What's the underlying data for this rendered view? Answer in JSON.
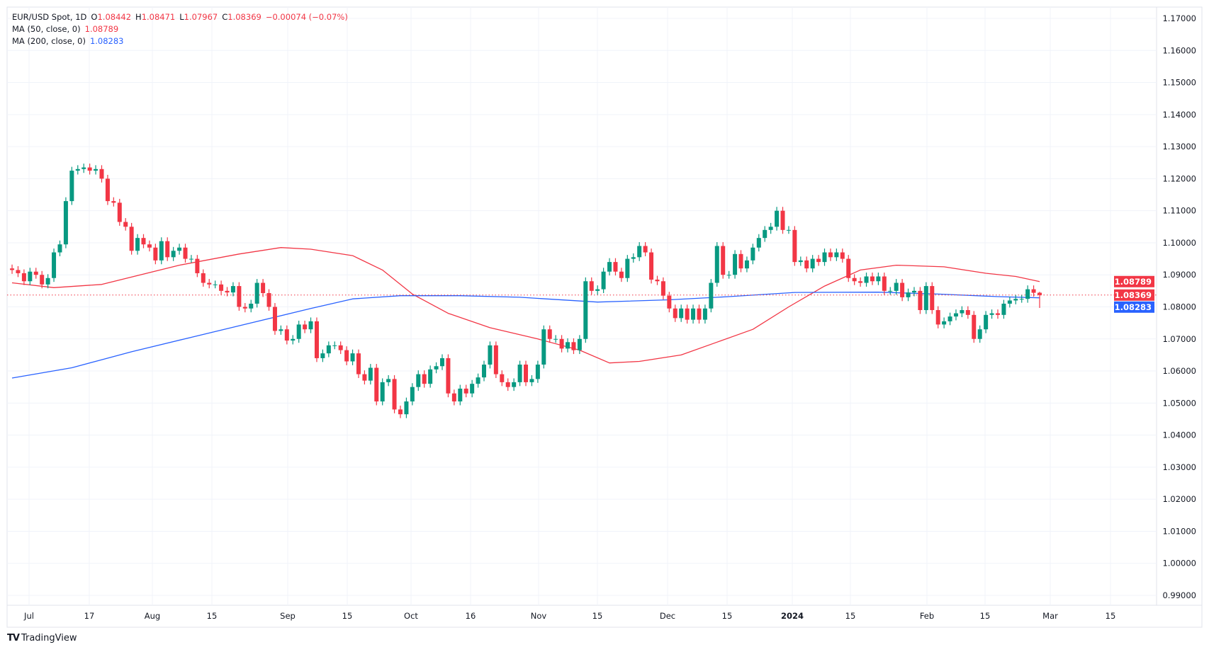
{
  "legend": {
    "symbol": "EUR/USD Spot, 1D",
    "o_label": "O",
    "o": "1.08442",
    "h_label": "H",
    "h": "1.08471",
    "l_label": "L",
    "l": "1.07967",
    "c_label": "C",
    "c": "1.08369",
    "change": "−0.00074 (−0.07%)",
    "ma50_label": "MA (50, close, 0)",
    "ma50_value": "1.08789",
    "ma200_label": "MA (200, close, 0)",
    "ma200_value": "1.08283"
  },
  "branding": {
    "logo_text": "TradingView",
    "logo_mark": "TV"
  },
  "colors": {
    "up": "#089981",
    "down": "#f23645",
    "ma50": "#f23645",
    "ma200": "#2962ff",
    "grid": "#f0f3fa",
    "text": "#131722"
  },
  "chart_data": {
    "type": "candlestick",
    "title": "EUR/USD Spot, 1D",
    "ylim": [
      0.99,
      1.17
    ],
    "y_ticks": [
      "1.17000",
      "1.16000",
      "1.15000",
      "1.14000",
      "1.13000",
      "1.12000",
      "1.11000",
      "1.10000",
      "1.09000",
      "1.08000",
      "1.07000",
      "1.06000",
      "1.05000",
      "1.04000",
      "1.03000",
      "1.02000",
      "1.01000",
      "1.00000",
      "0.99000"
    ],
    "x_ticks": [
      "Jul",
      "17",
      "Aug",
      "15",
      "Sep",
      "15",
      "Oct",
      "16",
      "Nov",
      "15",
      "Dec",
      "15",
      "2024",
      "15",
      "Feb",
      "15",
      "Mar",
      "15"
    ],
    "grid": true,
    "last": {
      "open": 1.08442,
      "high": 1.08471,
      "low": 1.07967,
      "close": 1.08369
    },
    "close": [
      1.0915,
      1.0905,
      1.088,
      1.091,
      1.09,
      1.087,
      1.089,
      1.097,
      1.0995,
      1.113,
      1.1225,
      1.123,
      1.1235,
      1.1225,
      1.123,
      1.12,
      1.113,
      1.1125,
      1.1065,
      1.105,
      1.0975,
      1.1015,
      1.0995,
      1.0985,
      1.0945,
      1.1005,
      1.0955,
      1.0975,
      1.0985,
      1.095,
      1.095,
      1.0905,
      1.0875,
      1.087,
      1.087,
      1.085,
      1.0845,
      1.0865,
      1.08,
      1.0795,
      1.081,
      1.0875,
      1.0843,
      1.08,
      1.0725,
      1.073,
      1.0695,
      1.07,
      1.0745,
      1.073,
      1.0755,
      1.064,
      1.0655,
      1.068,
      1.068,
      1.0665,
      1.063,
      1.0655,
      1.059,
      1.057,
      1.061,
      1.0505,
      1.0565,
      1.0575,
      1.048,
      1.0465,
      1.0505,
      1.055,
      1.059,
      1.056,
      1.0605,
      1.0615,
      1.064,
      1.053,
      1.0505,
      1.0545,
      1.053,
      1.056,
      1.058,
      1.062,
      1.068,
      1.059,
      1.0565,
      1.055,
      1.0565,
      1.062,
      1.0565,
      1.0575,
      1.062,
      1.073,
      1.07,
      1.07,
      1.067,
      1.069,
      1.0665,
      1.07,
      1.088,
      1.085,
      1.0855,
      1.091,
      1.094,
      1.091,
      1.089,
      1.095,
      1.0955,
      1.099,
      1.097,
      1.0885,
      1.088,
      1.0835,
      1.0795,
      1.0765,
      1.0795,
      1.076,
      1.0795,
      1.076,
      1.0795,
      1.0875,
      1.099,
      1.09,
      1.09,
      1.0965,
      1.092,
      1.0945,
      1.0985,
      1.1015,
      1.104,
      1.105,
      1.11,
      1.104,
      1.104,
      1.094,
      1.0945,
      1.092,
      1.095,
      1.094,
      1.097,
      1.0955,
      1.097,
      1.095,
      1.089,
      1.088,
      1.0875,
      1.0895,
      1.088,
      1.0895,
      1.085,
      1.085,
      1.0875,
      1.083,
      1.0845,
      1.085,
      1.079,
      1.0865,
      1.079,
      1.0745,
      1.0755,
      1.077,
      1.078,
      1.079,
      1.0775,
      1.07,
      1.073,
      1.0775,
      1.078,
      1.0775,
      1.081,
      1.082,
      1.0825,
      1.0825,
      1.0855,
      1.0844,
      1.08369
    ],
    "series": [
      {
        "name": "MA (50, close, 0)",
        "points": [
          [
            0,
            1.0875
          ],
          [
            7,
            1.086
          ],
          [
            15,
            1.087
          ],
          [
            28,
            1.093
          ],
          [
            38,
            1.0965
          ],
          [
            45,
            1.0985
          ],
          [
            50,
            1.098
          ],
          [
            57,
            1.096
          ],
          [
            62,
            1.0915
          ],
          [
            67,
            1.084
          ],
          [
            73,
            1.078
          ],
          [
            80,
            1.0735
          ],
          [
            88,
            1.07
          ],
          [
            95,
            1.0665
          ],
          [
            100,
            1.0625
          ],
          [
            105,
            1.063
          ],
          [
            112,
            1.065
          ],
          [
            118,
            1.069
          ],
          [
            124,
            1.073
          ],
          [
            130,
            1.08
          ],
          [
            136,
            1.0865
          ],
          [
            142,
            1.0915
          ],
          [
            148,
            1.093
          ],
          [
            156,
            1.0925
          ],
          [
            163,
            1.0905
          ],
          [
            168,
            1.0895
          ],
          [
            172,
            1.08789
          ]
        ]
      },
      {
        "name": "MA (200, close, 0)",
        "points": [
          [
            0,
            1.0578
          ],
          [
            10,
            1.061
          ],
          [
            20,
            1.066
          ],
          [
            30,
            1.0705
          ],
          [
            40,
            1.075
          ],
          [
            50,
            1.0795
          ],
          [
            57,
            1.0825
          ],
          [
            65,
            1.0835
          ],
          [
            75,
            1.0835
          ],
          [
            85,
            1.083
          ],
          [
            98,
            1.0815
          ],
          [
            110,
            1.0822
          ],
          [
            120,
            1.0832
          ],
          [
            131,
            1.0845
          ],
          [
            145,
            1.0846
          ],
          [
            155,
            1.084
          ],
          [
            165,
            1.0832
          ],
          [
            172,
            1.08283
          ]
        ]
      }
    ],
    "price_tags": [
      {
        "label": "1.08789",
        "value": 1.08789,
        "color": "#f23645"
      },
      {
        "label": "1.08369",
        "value": 1.08369,
        "color": "#f23645"
      },
      {
        "label": "1.08283",
        "value": 1.08283,
        "color": "#2962ff"
      }
    ]
  }
}
